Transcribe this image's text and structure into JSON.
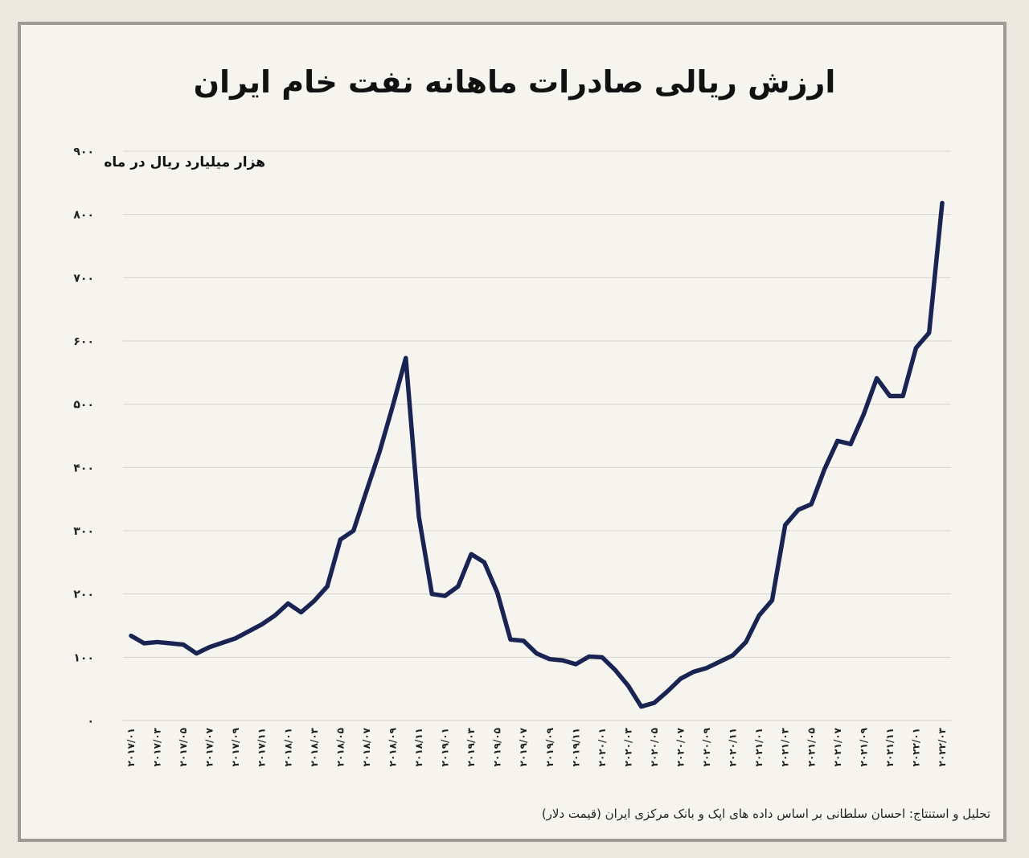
{
  "title": "ارزش ریالی صادرات ماهانه نفت خام ایران",
  "unit_label": "هزار میلیارد ریال در ماه",
  "source": "تحلیل و استنتاج: احسان سلطانی بر اساس داده های اپک و بانک مرکزی ایران (قیمت دلار)",
  "colors": {
    "line": "#1a2452",
    "grid": "#d6d5cf",
    "frame": "#9d9b96",
    "background": "#f5f4ee"
  },
  "chart_data": {
    "type": "line",
    "title": "ارزش ریالی صادرات ماهانه نفت خام ایران",
    "ylabel": "هزار میلیارد ریال در ماه",
    "xlabel": "",
    "ylim": [
      0,
      900
    ],
    "yticks": [
      0,
      100,
      200,
      300,
      400,
      500,
      600,
      700,
      800,
      900
    ],
    "ytick_labels": [
      "۰",
      "۱۰۰",
      "۲۰۰",
      "۳۰۰",
      "۴۰۰",
      "۵۰۰",
      "۶۰۰",
      "۷۰۰",
      "۸۰۰",
      "۹۰۰"
    ],
    "grid": true,
    "x_tick_labels": [
      "۲۰۱۷/۰۱",
      "۲۰۱۷/۰۳",
      "۲۰۱۷/۰۵",
      "۲۰۱۷/۰۷",
      "۲۰۱۷/۰۹",
      "۲۰۱۷/۱۱",
      "۲۰۱۸/۰۱",
      "۲۰۱۸/۰۳",
      "۲۰۱۸/۰۵",
      "۲۰۱۸/۰۷",
      "۲۰۱۸/۰۹",
      "۲۰۱۸/۱۱",
      "۲۰۱۹/۰۱",
      "۲۰۱۹/۰۳",
      "۲۰۱۹/۰۵",
      "۲۰۱۹/۰۷",
      "۲۰۱۹/۰۹",
      "۲۰۱۹/۱۱",
      "۲۰۲۰/۰۱",
      "۲۰۲۰/۰۳",
      "۲۰۲۰/۰۵",
      "۲۰۲۰/۰۷",
      "۲۰۲۰/۰۹",
      "۲۰۲۰/۱۱",
      "۲۰۲۱/۰۱",
      "۲۰۲۱/۰۳",
      "۲۰۲۱/۰۵",
      "۲۰۲۱/۰۷",
      "۲۰۲۱/۰۹",
      "۲۰۲۱/۱۱",
      "۲۰۲۲/۰۱",
      "۲۰۲۲/۰۳"
    ],
    "x": [
      "2017/01",
      "2017/02",
      "2017/03",
      "2017/04",
      "2017/05",
      "2017/06",
      "2017/07",
      "2017/08",
      "2017/09",
      "2017/10",
      "2017/11",
      "2017/12",
      "2018/01",
      "2018/02",
      "2018/03",
      "2018/04",
      "2018/05",
      "2018/06",
      "2018/07",
      "2018/08",
      "2018/09",
      "2018/10",
      "2018/11",
      "2018/12",
      "2019/01",
      "2019/02",
      "2019/03",
      "2019/04",
      "2019/05",
      "2019/06",
      "2019/07",
      "2019/08",
      "2019/09",
      "2019/10",
      "2019/11",
      "2019/12",
      "2020/01",
      "2020/02",
      "2020/03",
      "2020/04",
      "2020/05",
      "2020/06",
      "2020/07",
      "2020/08",
      "2020/09",
      "2020/10",
      "2020/11",
      "2020/12",
      "2021/01",
      "2021/02",
      "2021/03",
      "2021/04",
      "2021/05",
      "2021/06",
      "2021/07",
      "2021/08",
      "2021/09",
      "2021/10",
      "2021/11",
      "2021/12",
      "2022/01",
      "2022/02",
      "2022/03"
    ],
    "series": [
      {
        "values": [
          134,
          122,
          124,
          122,
          120,
          106,
          116,
          123,
          130,
          141,
          152,
          166,
          185,
          171,
          189,
          212,
          286,
          300,
          363,
          425,
          497,
          573,
          322,
          200,
          197,
          212,
          263,
          250,
          202,
          128,
          126,
          106,
          97,
          95,
          89,
          101,
          100,
          80,
          55,
          22,
          28,
          46,
          66,
          77,
          83,
          93,
          103,
          124,
          166,
          190,
          309,
          333,
          342,
          397,
          442,
          437,
          484,
          541,
          513,
          513,
          589,
          613,
          818
        ]
      }
    ]
  }
}
